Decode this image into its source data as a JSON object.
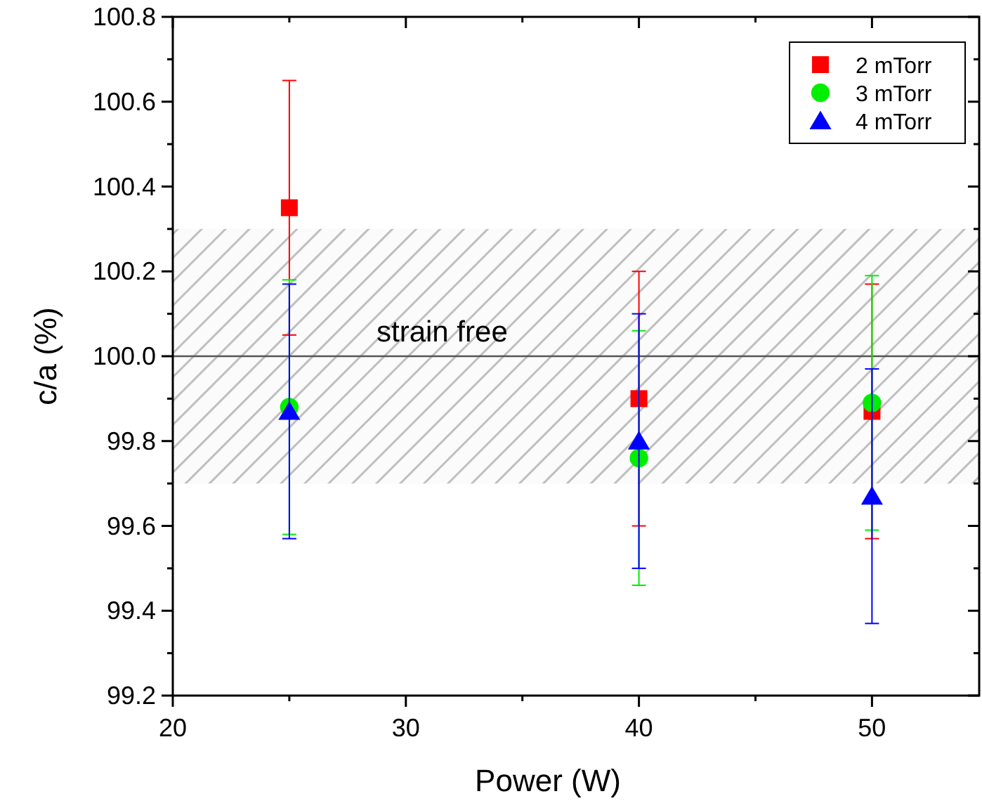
{
  "chart_data": {
    "type": "scatter",
    "xlabel": "Power (W)",
    "ylabel": "c/a (%)",
    "x": [
      25,
      40,
      50
    ],
    "series": [
      {
        "name": "2 mTorr",
        "color": "#ff0000",
        "marker": "square",
        "values": [
          100.35,
          99.9,
          99.87
        ],
        "errors": [
          0.3,
          0.3,
          0.3
        ]
      },
      {
        "name": "3 mTorr",
        "color": "#00ee00",
        "marker": "circle",
        "values": [
          99.88,
          99.76,
          99.89
        ],
        "errors": [
          0.3,
          0.3,
          0.3
        ]
      },
      {
        "name": "4 mTorr",
        "color": "#0000ff",
        "marker": "triangle",
        "values": [
          99.87,
          99.8,
          99.67
        ],
        "errors": [
          0.3,
          0.3,
          0.3
        ]
      }
    ],
    "xlim": [
      20,
      54.6
    ],
    "ylim": [
      99.2,
      100.8
    ],
    "xticks": [
      20,
      30,
      40,
      50
    ],
    "yticks": [
      {
        "value": 99.2,
        "label": "99.2"
      },
      {
        "value": 99.4,
        "label": "99.4"
      },
      {
        "value": 99.6,
        "label": "99.6"
      },
      {
        "value": 99.8,
        "label": "99.8"
      },
      {
        "value": 100.0,
        "label": "100.0"
      },
      {
        "value": 100.2,
        "label": "100.2"
      },
      {
        "value": 100.4,
        "label": "100.4"
      },
      {
        "value": 100.6,
        "label": "100.6"
      },
      {
        "value": 100.8,
        "label": "100.8"
      }
    ],
    "bands": [
      {
        "axis": "y",
        "from": 99.7,
        "to": 100.3,
        "label": "strain free",
        "color": "#b4b4b4"
      }
    ],
    "ref_lines": [
      {
        "axis": "y",
        "value": 100.0,
        "color": "#555555"
      }
    ],
    "legend": "top right",
    "grid": false
  }
}
